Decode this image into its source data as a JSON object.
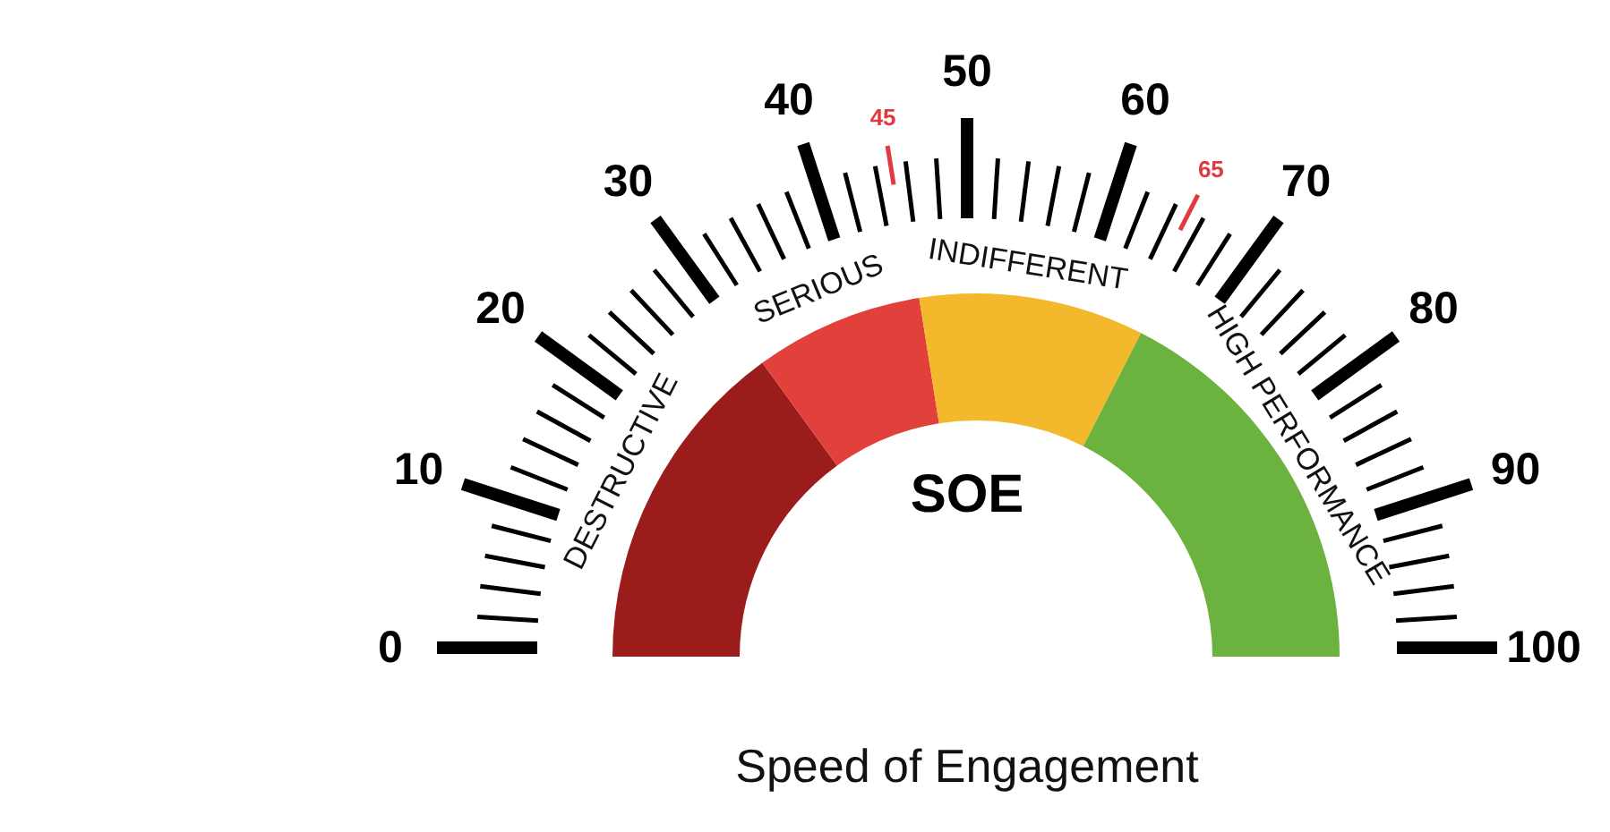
{
  "chart_data": {
    "type": "donut",
    "title": "SOE",
    "categories": [
      "DESTRUCTIVE",
      "SERIOUS",
      "INDIFFERENT",
      "HIGH PERFORMANCE"
    ],
    "values": [
      30,
      15,
      20,
      35
    ],
    "colors": [
      "#9a1d1b",
      "#e2403a",
      "#f4b82c",
      "#6cb23f"
    ],
    "annotations": [
      "0",
      "10",
      "20",
      "30",
      "40",
      "50",
      "60",
      "70",
      "80",
      "90",
      "100",
      "45",
      "65",
      "Speed of Engagement"
    ]
  }
}
